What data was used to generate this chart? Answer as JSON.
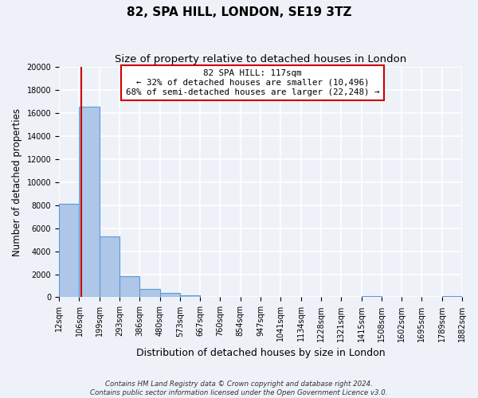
{
  "title": "82, SPA HILL, LONDON, SE19 3TZ",
  "subtitle": "Size of property relative to detached houses in London",
  "xlabel": "Distribution of detached houses by size in London",
  "ylabel": "Number of detached properties",
  "property_size": 117,
  "bin_edges": [
    12,
    106,
    199,
    293,
    386,
    480,
    573,
    667,
    760,
    854,
    947,
    1041,
    1134,
    1228,
    1321,
    1415,
    1508,
    1602,
    1695,
    1789,
    1882
  ],
  "bin_labels": [
    "12sqm",
    "106sqm",
    "199sqm",
    "293sqm",
    "386sqm",
    "480sqm",
    "573sqm",
    "667sqm",
    "760sqm",
    "854sqm",
    "947sqm",
    "1041sqm",
    "1134sqm",
    "1228sqm",
    "1321sqm",
    "1415sqm",
    "1508sqm",
    "1602sqm",
    "1695sqm",
    "1789sqm",
    "1882sqm"
  ],
  "bar_heights": [
    8100,
    16600,
    5300,
    1800,
    700,
    350,
    200,
    0,
    0,
    0,
    0,
    0,
    0,
    0,
    0,
    130,
    0,
    0,
    0,
    130
  ],
  "bar_color": "#aec6e8",
  "bar_edge_color": "#5b9bd5",
  "vline_color": "#cc0000",
  "vline_x": 117,
  "ylim": [
    0,
    20000
  ],
  "yticks": [
    0,
    2000,
    4000,
    6000,
    8000,
    10000,
    12000,
    14000,
    16000,
    18000,
    20000
  ],
  "annotation_text_line1": "82 SPA HILL: 117sqm",
  "annotation_text_line2": "← 32% of detached houses are smaller (10,496)",
  "annotation_text_line3": "68% of semi-detached houses are larger (22,248) →",
  "annotation_box_color": "#ffffff",
  "annotation_box_edge_color": "#cc0000",
  "footer_line1": "Contains HM Land Registry data © Crown copyright and database right 2024.",
  "footer_line2": "Contains public sector information licensed under the Open Government Licence v3.0.",
  "bg_color": "#eef2f8",
  "grid_color": "#ffffff",
  "title_fontsize": 11,
  "subtitle_fontsize": 9.5,
  "tick_fontsize": 7,
  "ylabel_fontsize": 8.5,
  "xlabel_fontsize": 9
}
